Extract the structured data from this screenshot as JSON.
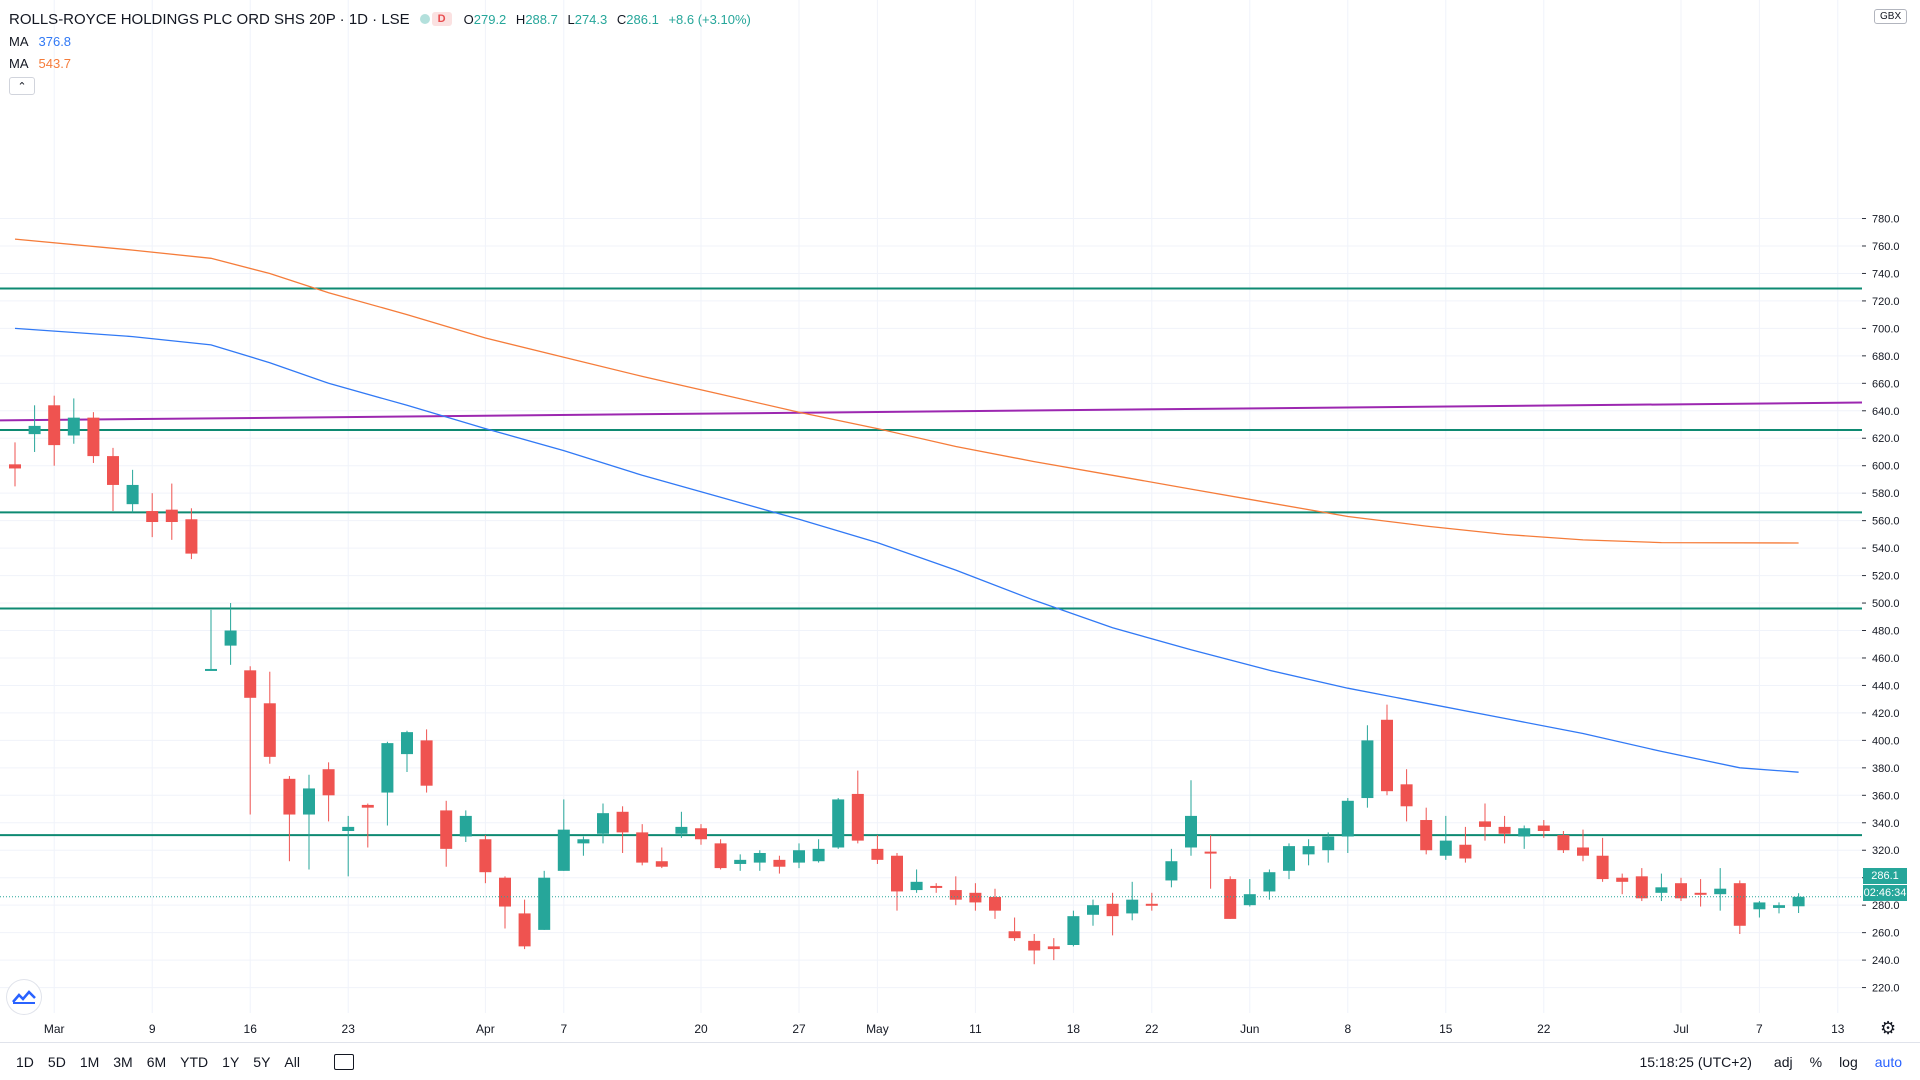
{
  "symbol": {
    "title": "ROLLS-ROYCE HOLDINGS PLC ORD SHS 20P · 1D · LSE",
    "badge": "D",
    "ohlc": {
      "o_label": "O",
      "o": "279.2",
      "h_label": "H",
      "h": "288.7",
      "l_label": "L",
      "l": "274.3",
      "c_label": "C",
      "c": "286.1",
      "change": "+8.6 (+3.10%)"
    }
  },
  "indicators": [
    {
      "name": "MA",
      "value": "376.8",
      "color": "#3179f5"
    },
    {
      "name": "MA",
      "value": "543.7",
      "color": "#f57c3a"
    }
  ],
  "collapse_icon": "chevron-up-icon",
  "currency": "GBX",
  "last_price_tag": {
    "price": "286.1",
    "countdown": "02:46:34",
    "color": "#26a69a"
  },
  "time_ranges": [
    "1D",
    "5D",
    "1M",
    "3M",
    "6M",
    "YTD",
    "1Y",
    "5Y",
    "All"
  ],
  "clock": "15:18:25 (UTC+2)",
  "scale_buttons": [
    "adj",
    "%",
    "log",
    "auto"
  ],
  "colors": {
    "up": "#26a69a",
    "down": "#ef5350",
    "hline": "#0e8a72",
    "trend": "#9c27b0",
    "ma_fast": "#3179f5",
    "ma_slow": "#f57c3a"
  },
  "chart_data": {
    "type": "candlestick",
    "currency": "GBX",
    "y_axis_ticks": [
      220,
      240,
      260,
      280,
      300,
      320,
      340,
      360,
      380,
      400,
      420,
      440,
      460,
      480,
      500,
      520,
      540,
      560,
      580,
      600,
      620,
      640,
      660,
      680,
      700,
      720,
      740,
      760,
      780
    ],
    "ylim": [
      208,
      790
    ],
    "x_axis_ticks": [
      {
        "label": "Mar",
        "index": 2
      },
      {
        "label": "9",
        "index": 7
      },
      {
        "label": "16",
        "index": 12
      },
      {
        "label": "23",
        "index": 17
      },
      {
        "label": "Apr",
        "index": 24
      },
      {
        "label": "7",
        "index": 28
      },
      {
        "label": "20",
        "index": 35
      },
      {
        "label": "27",
        "index": 40
      },
      {
        "label": "May",
        "index": 44
      },
      {
        "label": "11",
        "index": 49
      },
      {
        "label": "18",
        "index": 54
      },
      {
        "label": "22",
        "index": 58
      },
      {
        "label": "Jun",
        "index": 63
      },
      {
        "label": "8",
        "index": 68
      },
      {
        "label": "15",
        "index": 73
      },
      {
        "label": "22",
        "index": 78
      },
      {
        "label": "Jul",
        "index": 85
      },
      {
        "label": "7",
        "index": 89
      },
      {
        "label": "13",
        "index": 93
      }
    ],
    "candles": [
      [
        601,
        598,
        617,
        585
      ],
      [
        623,
        629,
        644,
        610
      ],
      [
        644,
        615,
        651,
        600
      ],
      [
        622,
        635,
        649,
        616
      ],
      [
        635,
        607,
        639,
        602
      ],
      [
        607,
        586,
        613,
        567
      ],
      [
        572,
        586,
        597,
        566
      ],
      [
        567,
        559,
        580,
        548
      ],
      [
        568,
        559,
        587,
        546
      ],
      [
        561,
        536,
        569,
        532
      ],
      [
        452,
        452,
        495,
        452
      ],
      [
        469,
        480,
        500,
        455
      ],
      [
        451,
        431,
        454,
        346
      ],
      [
        427,
        388,
        450,
        383
      ],
      [
        372,
        346,
        374,
        312
      ],
      [
        346,
        365,
        375,
        306
      ],
      [
        379,
        360,
        384,
        341
      ],
      [
        334,
        337,
        345,
        301
      ],
      [
        353,
        351,
        354,
        322
      ],
      [
        362,
        398,
        399,
        338
      ],
      [
        390,
        406,
        407,
        377
      ],
      [
        400,
        367,
        408,
        362
      ],
      [
        349,
        321,
        356,
        308
      ],
      [
        330,
        345,
        349,
        326
      ],
      [
        328,
        304,
        331,
        296
      ],
      [
        300,
        279,
        301,
        263
      ],
      [
        274,
        250,
        284,
        248
      ],
      [
        262,
        300,
        305,
        262
      ],
      [
        305,
        335,
        357,
        305
      ],
      [
        325,
        328,
        330,
        316
      ],
      [
        332,
        347,
        354,
        325
      ],
      [
        348,
        333,
        352,
        318
      ],
      [
        333,
        311,
        339,
        309
      ],
      [
        312,
        308,
        322,
        307
      ],
      [
        332,
        337,
        348,
        329
      ],
      [
        336,
        328,
        339,
        324
      ],
      [
        325,
        307,
        328,
        306
      ],
      [
        310,
        313,
        317,
        305
      ],
      [
        311,
        318,
        320,
        305
      ],
      [
        313,
        308,
        316,
        303
      ],
      [
        311,
        320,
        325,
        307
      ],
      [
        312,
        321,
        328,
        311
      ],
      [
        322,
        357,
        358,
        321
      ],
      [
        361,
        327,
        378,
        325
      ],
      [
        321,
        313,
        331,
        310
      ],
      [
        316,
        290,
        318,
        276
      ],
      [
        291,
        297,
        306,
        289
      ],
      [
        294,
        293,
        296,
        289
      ],
      [
        291,
        284,
        301,
        280
      ],
      [
        289,
        282,
        296,
        276
      ],
      [
        286,
        276,
        292,
        270
      ],
      [
        261,
        256,
        271,
        254
      ],
      [
        254,
        247,
        259,
        237
      ],
      [
        250,
        248,
        256,
        240
      ],
      [
        251,
        272,
        276,
        250
      ],
      [
        273,
        280,
        284,
        265
      ],
      [
        281,
        272,
        289,
        258
      ],
      [
        274,
        284,
        297,
        269
      ],
      [
        281,
        280,
        289,
        276
      ],
      [
        298,
        312,
        321,
        293
      ],
      [
        322,
        345,
        371,
        316
      ],
      [
        319,
        318,
        331,
        292
      ],
      [
        299,
        270,
        301,
        270
      ],
      [
        280,
        288,
        299,
        279
      ],
      [
        290,
        304,
        306,
        284
      ],
      [
        305,
        323,
        325,
        299
      ],
      [
        317,
        323,
        328,
        309
      ],
      [
        320,
        330,
        333,
        311
      ],
      [
        330,
        356,
        358,
        318
      ],
      [
        358,
        400,
        411,
        351
      ],
      [
        415,
        363,
        426,
        360
      ],
      [
        368,
        352,
        379,
        341
      ],
      [
        342,
        320,
        351,
        317
      ],
      [
        316,
        327,
        345,
        313
      ],
      [
        324,
        314,
        337,
        311
      ],
      [
        341,
        337,
        354,
        327
      ],
      [
        337,
        332,
        345,
        325
      ],
      [
        330,
        336,
        338,
        321
      ],
      [
        338,
        334,
        342,
        329
      ],
      [
        331,
        320,
        334,
        318
      ],
      [
        322,
        316,
        335,
        312
      ],
      [
        316,
        299,
        329,
        297
      ],
      [
        300,
        297,
        303,
        288
      ],
      [
        301,
        285,
        307,
        283
      ],
      [
        289,
        293,
        303,
        283
      ],
      [
        296,
        285,
        300,
        283
      ],
      [
        289,
        288,
        299,
        279
      ],
      [
        288,
        292,
        307,
        276
      ],
      [
        296,
        265,
        298,
        259
      ],
      [
        277,
        282,
        283,
        271
      ],
      [
        278,
        280,
        282,
        274
      ],
      [
        279.2,
        286.1,
        288.7,
        274.3
      ]
    ],
    "ma_short": [
      [
        0,
        700
      ],
      [
        6,
        694
      ],
      [
        10,
        688
      ],
      [
        13,
        675
      ],
      [
        16,
        660
      ],
      [
        20,
        644
      ],
      [
        24,
        627
      ],
      [
        28,
        611
      ],
      [
        32,
        593
      ],
      [
        36,
        577
      ],
      [
        40,
        561
      ],
      [
        44,
        544
      ],
      [
        48,
        524
      ],
      [
        52,
        502
      ],
      [
        56,
        482
      ],
      [
        60,
        466
      ],
      [
        64,
        451
      ],
      [
        68,
        438
      ],
      [
        72,
        427
      ],
      [
        76,
        416
      ],
      [
        80,
        405
      ],
      [
        84,
        392
      ],
      [
        88,
        380
      ],
      [
        91,
        376.8
      ]
    ],
    "ma_long": [
      [
        0,
        765
      ],
      [
        6,
        757
      ],
      [
        10,
        751
      ],
      [
        13,
        740
      ],
      [
        16,
        726
      ],
      [
        20,
        710
      ],
      [
        24,
        693
      ],
      [
        28,
        679
      ],
      [
        32,
        665
      ],
      [
        36,
        652
      ],
      [
        40,
        639
      ],
      [
        44,
        627
      ],
      [
        48,
        614
      ],
      [
        52,
        603
      ],
      [
        56,
        593
      ],
      [
        60,
        583
      ],
      [
        64,
        573
      ],
      [
        68,
        563
      ],
      [
        72,
        556
      ],
      [
        76,
        550
      ],
      [
        80,
        546
      ],
      [
        84,
        544
      ],
      [
        91,
        543.7
      ]
    ],
    "horizontal_lines": [
      729,
      626,
      566,
      496,
      331
    ],
    "trend_line": [
      [
        0,
        633
      ],
      [
        91,
        646
      ]
    ],
    "last_price_line": 286.1
  }
}
